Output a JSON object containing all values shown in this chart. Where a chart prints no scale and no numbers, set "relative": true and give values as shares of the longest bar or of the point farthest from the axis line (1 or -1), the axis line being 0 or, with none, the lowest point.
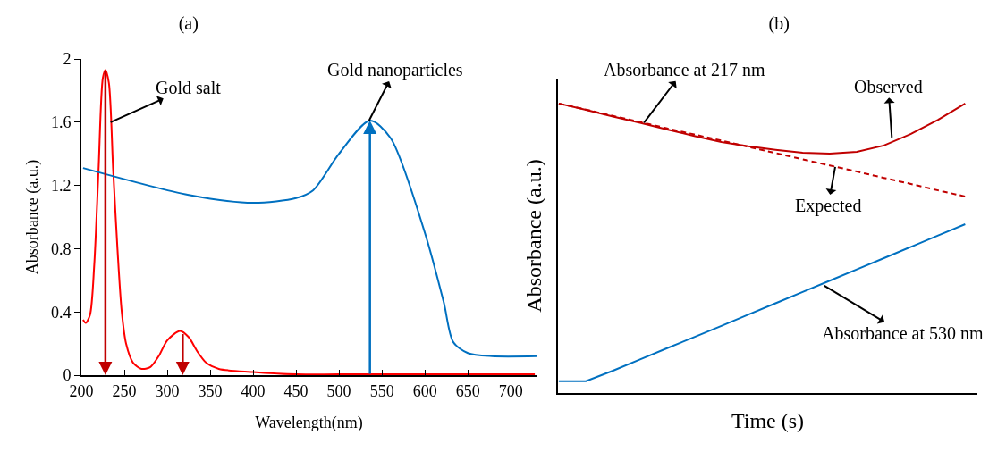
{
  "chart_data": [
    {
      "type": "line",
      "title": "(a)",
      "xlabel": "Wavelength(nm)",
      "ylabel": "Absorbance (a.u.)",
      "xlim": [
        200,
        730
      ],
      "ylim": [
        0,
        2
      ],
      "xticks": [
        200,
        250,
        300,
        350,
        400,
        450,
        500,
        550,
        600,
        650,
        700
      ],
      "yticks": [
        0,
        0.4,
        0.8,
        1.2,
        1.6,
        2
      ],
      "grid": false,
      "marker": "none",
      "series": [
        {
          "color": "#ff0000",
          "x": [
            202,
            205,
            210,
            215,
            220,
            225,
            228,
            232,
            237,
            242,
            247,
            252,
            260,
            270,
            280,
            290,
            300,
            315,
            325,
            335,
            345,
            360,
            400,
            450,
            500,
            625,
            728
          ],
          "values": [
            0.35,
            0.33,
            0.38,
            0.7,
            1.3,
            1.88,
            1.93,
            1.85,
            1.3,
            0.8,
            0.4,
            0.2,
            0.08,
            0.04,
            0.05,
            0.12,
            0.22,
            0.28,
            0.24,
            0.15,
            0.08,
            0.04,
            0.02,
            0.005,
            0.005,
            0.005,
            0.005
          ]
        },
        {
          "color": "#0070c0",
          "x": [
            202,
            325,
            400,
            450,
            470,
            500,
            536,
            560,
            600,
            622,
            633,
            650,
            678,
            730
          ],
          "values": [
            1.31,
            1.14,
            1.09,
            1.12,
            1.17,
            1.4,
            1.61,
            1.5,
            0.9,
            0.46,
            0.21,
            0.14,
            0.12,
            0.12
          ]
        }
      ],
      "ref_lines": [
        {
          "axis": "x",
          "value": 228,
          "color": "#c00000"
        },
        {
          "axis": "x",
          "value": 318,
          "color": "#c00000"
        },
        {
          "axis": "x",
          "value": 536,
          "color": "#0070c0"
        }
      ],
      "annotations": [
        {
          "text": "Gold salt",
          "x": 234,
          "y": 1.6
        },
        {
          "text": "Gold nanoparticles",
          "x": 535,
          "y": 1.61
        }
      ]
    },
    {
      "type": "line",
      "title": "(b)",
      "xlabel": "Time (s)",
      "ylabel": "Absorbance (a.u.)",
      "relative": true,
      "grid": false,
      "marker": "none",
      "categories": [
        null,
        null,
        null,
        null,
        null,
        null,
        null,
        null,
        null,
        null,
        null,
        null,
        null,
        null,
        null,
        null
      ],
      "series": [
        {
          "color": "#c00000",
          "line_style": "solid",
          "values": [
            1.0,
            0.978,
            0.955,
            0.933,
            0.91,
            0.888,
            0.867,
            0.852,
            0.84,
            0.83,
            0.827,
            0.833,
            0.855,
            0.895,
            0.944,
            1.0
          ]
        },
        {
          "color": "#c00000",
          "line_style": "dashed",
          "values": [
            1.0,
            0.979,
            0.957,
            0.936,
            0.914,
            0.893,
            0.872,
            0.85,
            0.829,
            0.807,
            0.786,
            0.765,
            0.743,
            0.722,
            0.7,
            0.679
          ]
        },
        {
          "color": "#0070c0",
          "line_style": "solid",
          "values": [
            0.041,
            0.041,
            0.077,
            0.116,
            0.155,
            0.193,
            0.232,
            0.271,
            0.31,
            0.349,
            0.388,
            0.427,
            0.466,
            0.505,
            0.544,
            0.583
          ]
        }
      ],
      "annotations": [
        "Absorbance at 217 nm",
        "Observed",
        "Expected",
        "Absorbance at 530 nm"
      ]
    }
  ]
}
